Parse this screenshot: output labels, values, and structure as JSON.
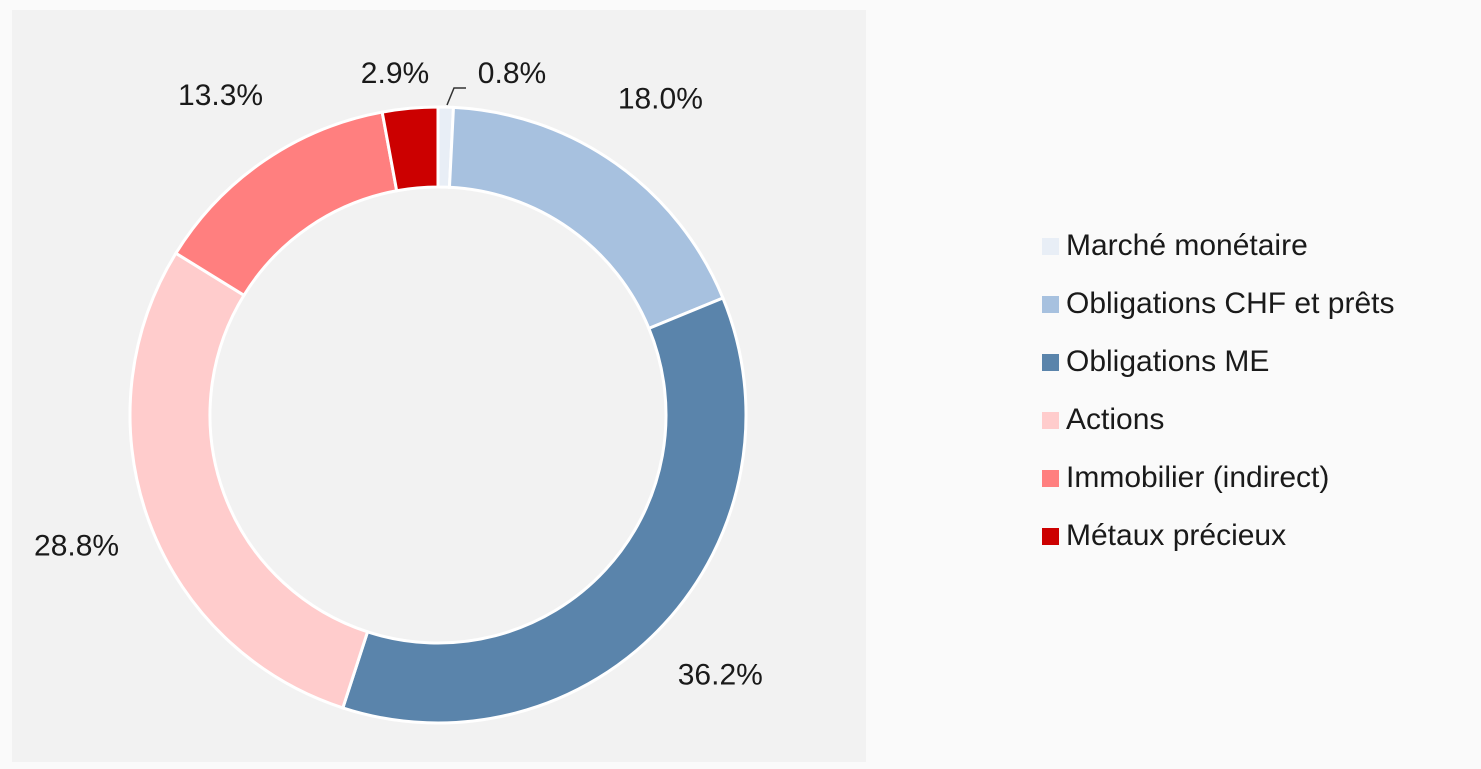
{
  "chart_data": {
    "type": "donut",
    "categories": [
      "Marché monétaire",
      "Obligations CHF et prêts",
      "Obligations ME",
      "Actions",
      "Immobilier (indirect)",
      "Métaux précieux"
    ],
    "values": [
      0.8,
      18.0,
      36.2,
      28.8,
      13.3,
      2.9
    ],
    "value_labels": [
      "0.8%",
      "18.0%",
      "36.2%",
      "28.8%",
      "13.3%",
      "2.9%"
    ],
    "colors": [
      "#e8eef6",
      "#a7c1df",
      "#5a84ab",
      "#ffcccc",
      "#ff7f7f",
      "#cc0000"
    ],
    "legend": "right"
  }
}
